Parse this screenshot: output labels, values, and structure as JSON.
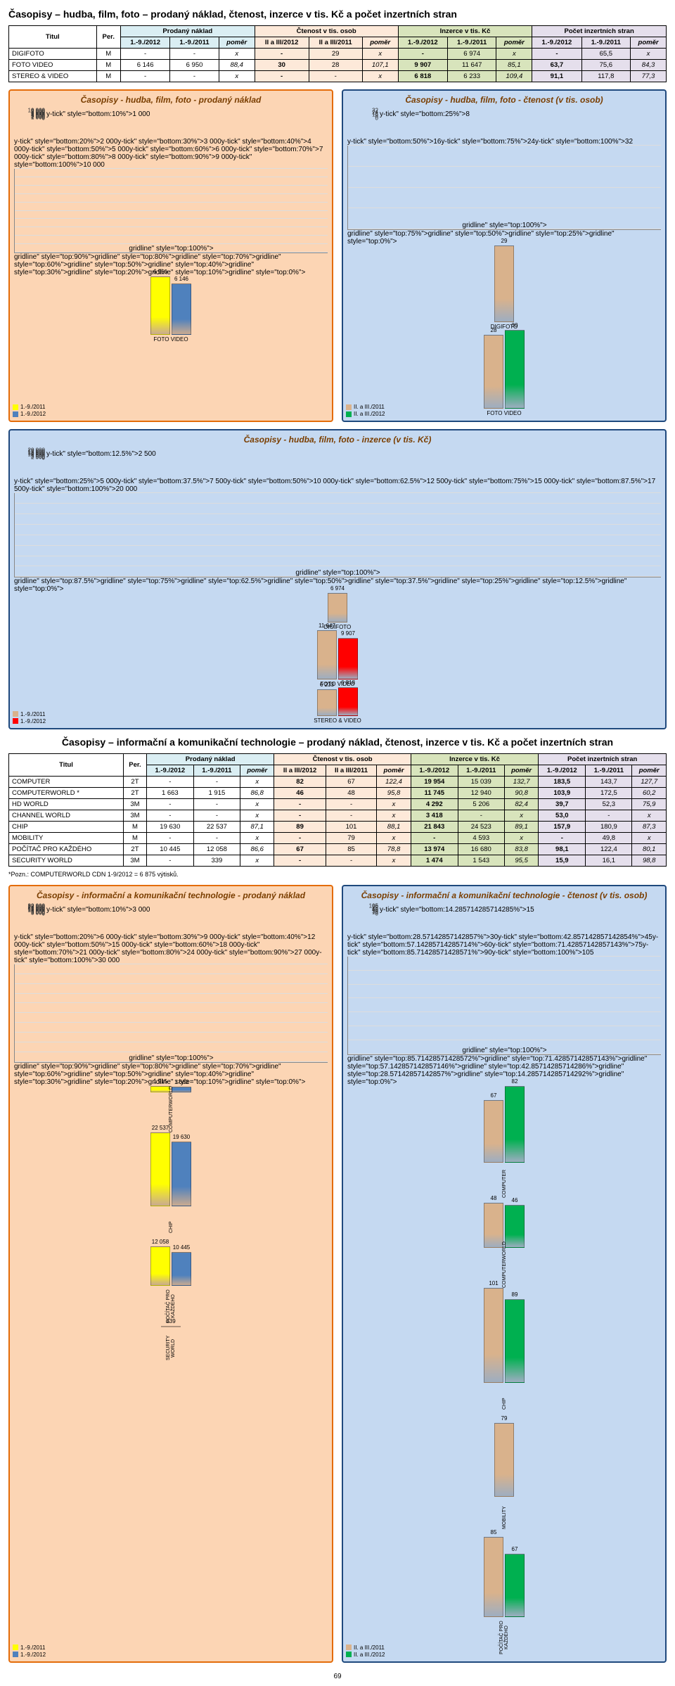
{
  "title1": "Časopisy – hudba, film, foto – prodaný náklad, čtenost, inzerce v tis. Kč a počet inzertních stran",
  "title2": "Časopisy – informační a komunikační technologie – prodaný náklad, čtenost, inzerce v tis. Kč a počet inzertních stran",
  "tbl_hdr": {
    "titul": "Titul",
    "per": "Per.",
    "prodany": "Prodaný náklad",
    "ctenost": "Čtenost v tis. osob",
    "inzerce": "Inzerce v tis. Kč",
    "pocet": "Počet inzertních stran",
    "c2012": "1.-9./2012",
    "c2011": "1.-9./2011",
    "pomer": "poměr",
    "ii2012": "II a III/2012",
    "ii2011": "II a III/2011"
  },
  "t1": {
    "rows": [
      {
        "n": "DIGIFOTO",
        "p": "M",
        "pn12": "-",
        "pn11": "-",
        "pnr": "x",
        "ct12": "-",
        "ct11": "29",
        "ctr": "x",
        "iz12": "-",
        "iz11": "6 974",
        "izr": "x",
        "pc12": "-",
        "pc11": "65,5",
        "pcr": "x"
      },
      {
        "n": "FOTO VIDEO",
        "p": "M",
        "pn12": "6 146",
        "pn11": "6 950",
        "pnr": "88,4",
        "ct12": "30",
        "ct11": "28",
        "ctr": "107,1",
        "iz12": "9 907",
        "iz11": "11 647",
        "izr": "85,1",
        "pc12": "63,7",
        "pc11": "75,6",
        "pcr": "84,3"
      },
      {
        "n": "STEREO & VIDEO",
        "p": "M",
        "pn12": "-",
        "pn11": "-",
        "pnr": "x",
        "ct12": "-",
        "ct11": "-",
        "ctr": "x",
        "iz12": "6 818",
        "iz11": "6 233",
        "izr": "109,4",
        "pc12": "91,1",
        "pc11": "117,8",
        "pcr": "77,3"
      }
    ]
  },
  "t2": {
    "rows": [
      {
        "n": "COMPUTER",
        "p": "2T",
        "pn12": "-",
        "pn11": "-",
        "pnr": "x",
        "ct12": "82",
        "ct11": "67",
        "ctr": "122,4",
        "iz12": "19 954",
        "iz11": "15 039",
        "izr": "132,7",
        "pc12": "183,5",
        "pc11": "143,7",
        "pcr": "127,7"
      },
      {
        "n": "COMPUTERWORLD *",
        "p": "2T",
        "pn12": "1 663",
        "pn11": "1 915",
        "pnr": "86,8",
        "ct12": "46",
        "ct11": "48",
        "ctr": "95,8",
        "iz12": "11 745",
        "iz11": "12 940",
        "izr": "90,8",
        "pc12": "103,9",
        "pc11": "172,5",
        "pcr": "60,2"
      },
      {
        "n": "HD WORLD",
        "p": "3M",
        "pn12": "-",
        "pn11": "-",
        "pnr": "x",
        "ct12": "-",
        "ct11": "-",
        "ctr": "x",
        "iz12": "4 292",
        "iz11": "5 206",
        "izr": "82,4",
        "pc12": "39,7",
        "pc11": "52,3",
        "pcr": "75,9"
      },
      {
        "n": "CHANNEL WORLD",
        "p": "3M",
        "pn12": "-",
        "pn11": "-",
        "pnr": "x",
        "ct12": "-",
        "ct11": "-",
        "ctr": "x",
        "iz12": "3 418",
        "iz11": "-",
        "izr": "x",
        "pc12": "53,0",
        "pc11": "-",
        "pcr": "x"
      },
      {
        "n": "CHIP",
        "p": "M",
        "pn12": "19 630",
        "pn11": "22 537",
        "pnr": "87,1",
        "ct12": "89",
        "ct11": "101",
        "ctr": "88,1",
        "iz12": "21 843",
        "iz11": "24 523",
        "izr": "89,1",
        "pc12": "157,9",
        "pc11": "180,9",
        "pcr": "87,3"
      },
      {
        "n": "MOBILITY",
        "p": "M",
        "pn12": "-",
        "pn11": "-",
        "pnr": "x",
        "ct12": "-",
        "ct11": "79",
        "ctr": "x",
        "iz12": "-",
        "iz11": "4 593",
        "izr": "x",
        "pc12": "-",
        "pc11": "49,8",
        "pcr": "x"
      },
      {
        "n": "POČÍTAČ PRO KAŽDÉHO",
        "p": "2T",
        "pn12": "10 445",
        "pn11": "12 058",
        "pnr": "86,6",
        "ct12": "67",
        "ct11": "85",
        "ctr": "78,8",
        "iz12": "13 974",
        "iz11": "16 680",
        "izr": "83,8",
        "pc12": "98,1",
        "pc11": "122,4",
        "pcr": "80,1"
      },
      {
        "n": "SECURITY WORLD",
        "p": "3M",
        "pn12": "-",
        "pn11": "339",
        "pnr": "x",
        "ct12": "-",
        "ct11": "-",
        "ctr": "x",
        "iz12": "1 474",
        "iz11": "1 543",
        "izr": "95,5",
        "pc12": "15,9",
        "pc11": "16,1",
        "pcr": "98,8"
      }
    ]
  },
  "footnote": "*Pozn.: COMPUTERWORLD CDN 1-9/2012 = 6 875 výtisků.",
  "page_num": "69",
  "colors": {
    "yellow": "#ffff00",
    "blue3d": "#4f81bd",
    "tan": "#d9b28c",
    "green": "#4bacc6",
    "red": "#ff0000",
    "orange_border": "#e46c0a",
    "blue_border": "#1f497d",
    "bg_orange": "#fcd5b4",
    "bg_blue": "#c5d9f1",
    "darkgreen": "#00b050"
  },
  "chart1a": {
    "title": "Časopisy - hudba, film, foto - prodaný náklad",
    "type": "bar",
    "bg": "#fcd5b4",
    "border": "#e46c0a",
    "ymax": 10000,
    "ystep": 1000,
    "cats": [
      "FOTO VIDEO"
    ],
    "series": [
      {
        "label": "1.-9./2011",
        "color": "#ffff00",
        "vals": [
          6950
        ]
      },
      {
        "label": "1.-9./2012",
        "color": "#4f81bd",
        "vals": [
          6146
        ]
      }
    ]
  },
  "chart1b": {
    "title": "Časopisy - hudba, film, foto - čtenost (v tis. osob)",
    "type": "bar",
    "bg": "#c5d9f1",
    "border": "#1f497d",
    "ymax": 32,
    "ystep": 8,
    "cats": [
      "DIGIFOTO",
      "FOTO VIDEO"
    ],
    "series": [
      {
        "label": "II. a III./2011",
        "color": "#d9b28c",
        "vals": [
          29,
          28
        ]
      },
      {
        "label": "II. a III./2012",
        "color": "#00b050",
        "vals": [
          null,
          30
        ]
      }
    ]
  },
  "chart2": {
    "title": "Časopisy - hudba, film, foto - inzerce (v tis. Kč)",
    "type": "bar",
    "bg": "#c5d9f1",
    "border": "#1f497d",
    "ymax": 20000,
    "ystep": 2500,
    "cats": [
      "DIGIFOTO",
      "FOTO VIDEO",
      "STEREO & VIDEO"
    ],
    "series": [
      {
        "label": "1.-9./2011",
        "color": "#d9b28c",
        "vals": [
          6974,
          11647,
          6233
        ]
      },
      {
        "label": "1.-9./2012",
        "color": "#ff0000",
        "vals": [
          null,
          9907,
          6818
        ]
      }
    ]
  },
  "chart3a": {
    "title": "Časopisy - informační a komunikační technologie - prodaný náklad",
    "type": "bar",
    "bg": "#fcd5b4",
    "border": "#e46c0a",
    "ymax": 30000,
    "ystep": 3000,
    "cats": [
      "COMPUTERWORLD",
      "CHIP",
      "POČÍTAČ PRO KAŽDÉHO",
      "SECURITY WORLD"
    ],
    "series": [
      {
        "label": "1.-9./2011",
        "color": "#ffff00",
        "vals": [
          1915,
          22537,
          12058,
          339
        ]
      },
      {
        "label": "1.-9./2012",
        "color": "#4f81bd",
        "vals": [
          1663,
          19630,
          10445,
          null
        ]
      }
    ]
  },
  "chart3b": {
    "title": "Časopisy - informační a komunikační technologie - čtenost (v tis. osob)",
    "type": "bar",
    "bg": "#c5d9f1",
    "border": "#1f497d",
    "ymax": 105,
    "ystep": 15,
    "cats": [
      "COMPUTER",
      "COMPUTERWORLD",
      "CHIP",
      "MOBILITY",
      "POČÍTAČ PRO KAŽDÉHO"
    ],
    "series": [
      {
        "label": "II. a III./2011",
        "color": "#d9b28c",
        "vals": [
          67,
          48,
          101,
          79,
          85
        ]
      },
      {
        "label": "II. a III./2012",
        "color": "#00b050",
        "vals": [
          82,
          46,
          89,
          null,
          67
        ]
      }
    ]
  }
}
